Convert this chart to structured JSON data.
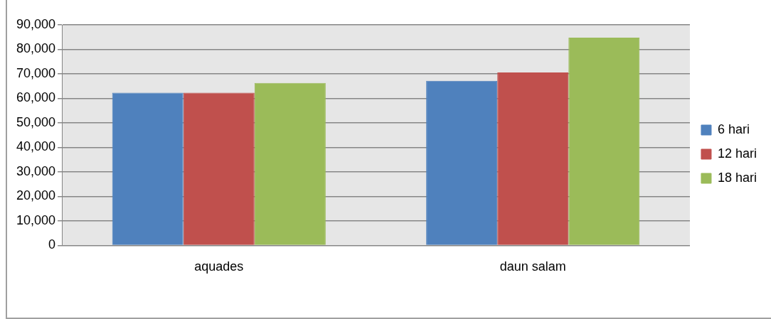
{
  "chart_data": {
    "type": "bar",
    "categories": [
      "aquades",
      "daun salam"
    ],
    "series": [
      {
        "name": "6 hari",
        "color": "#4f81bd",
        "values": [
          62300,
          67200
        ]
      },
      {
        "name": "12 hari",
        "color": "#c0504d",
        "values": [
          62300,
          70600
        ]
      },
      {
        "name": "18 hari",
        "color": "#9bbb59",
        "values": [
          66300,
          84800
        ]
      }
    ],
    "ylim": [
      0,
      90000
    ],
    "yticks": [
      {
        "value": 0,
        "label": "0"
      },
      {
        "value": 10000,
        "label": "10,000"
      },
      {
        "value": 20000,
        "label": "20,000"
      },
      {
        "value": 30000,
        "label": "30,000"
      },
      {
        "value": 40000,
        "label": "40,000"
      },
      {
        "value": 50000,
        "label": "50,000"
      },
      {
        "value": 60000,
        "label": "60,000"
      },
      {
        "value": 70000,
        "label": "70,000"
      },
      {
        "value": 80000,
        "label": "80,000"
      },
      {
        "value": 90000,
        "label": "90,000"
      }
    ],
    "grid": "y",
    "legend": "right"
  }
}
